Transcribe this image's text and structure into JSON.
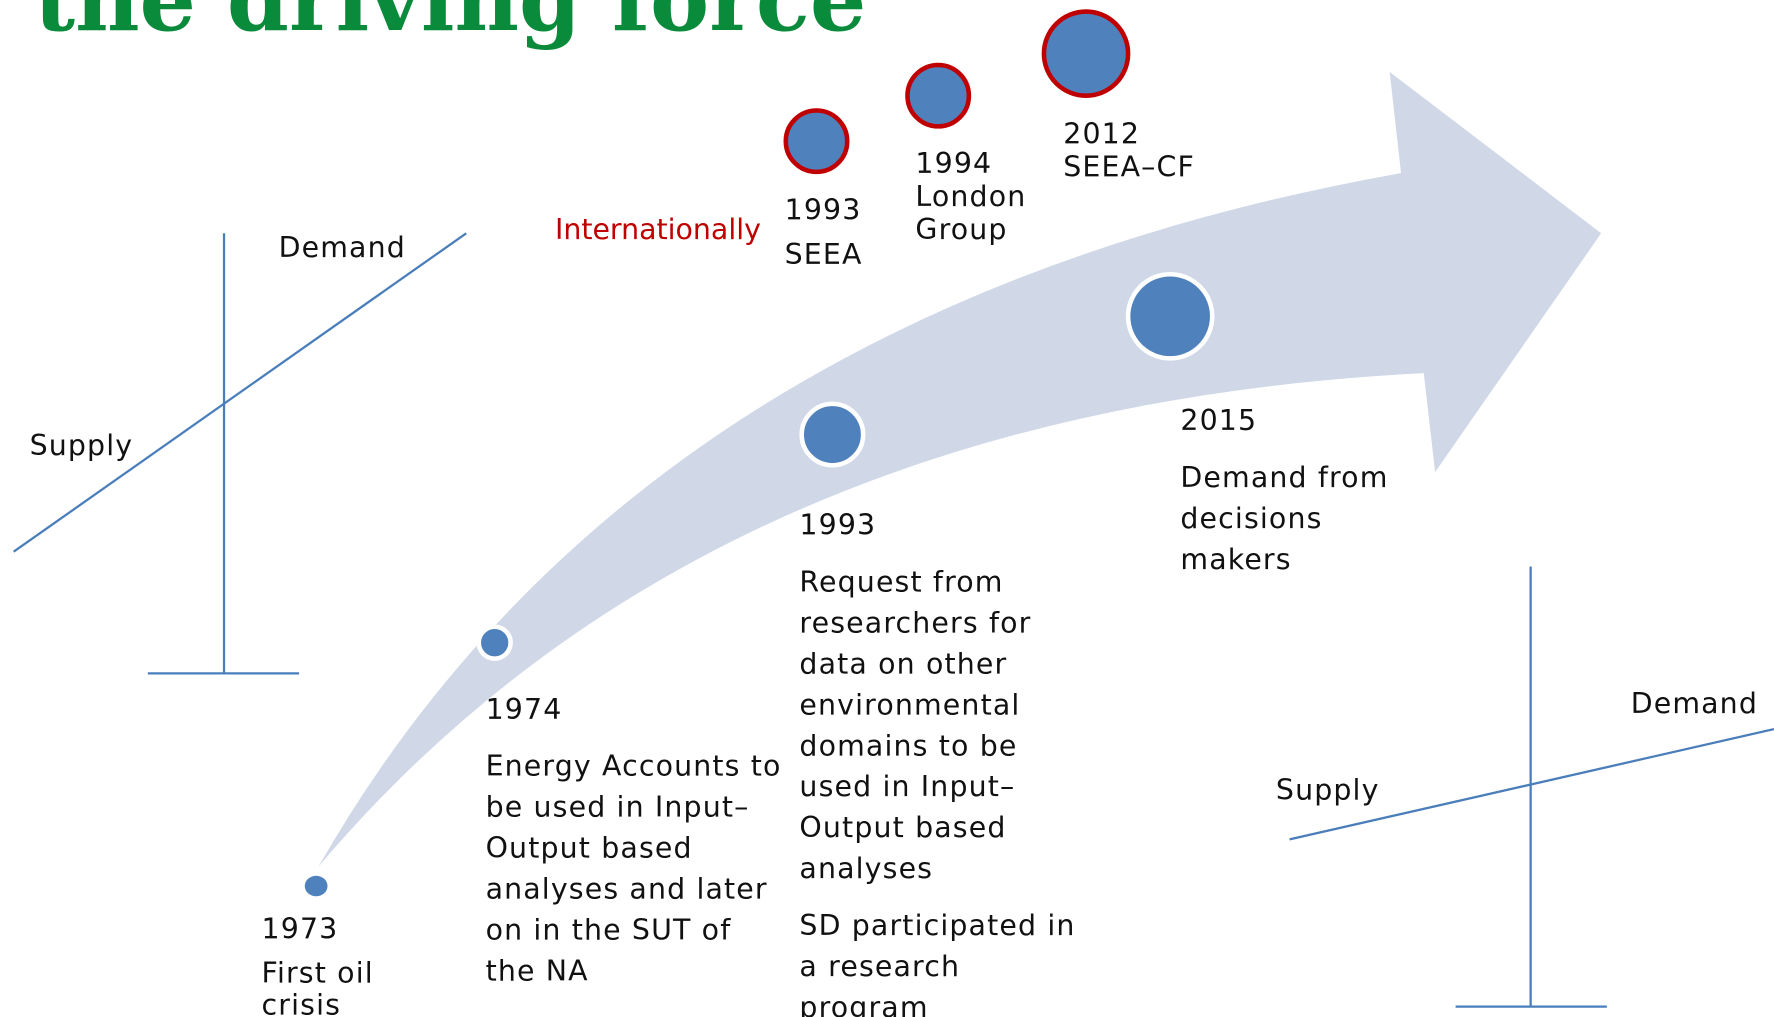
{
  "title": "the driving force",
  "international": {
    "label": "Internationally",
    "milestones": [
      {
        "lines": [
          "1993",
          "SEEA"
        ]
      },
      {
        "lines": [
          "1994",
          "London",
          "Group"
        ]
      },
      {
        "lines": [
          "2012",
          "SEEA–CF"
        ]
      }
    ]
  },
  "timeline": [
    {
      "year": "1973",
      "lines": [
        "First oil",
        "crisis"
      ]
    },
    {
      "year": "1974",
      "lines": [
        "Energy Accounts to",
        "be used in Input–",
        "Output based",
        "analyses and later",
        "on in the SUT of",
        "the NA"
      ]
    },
    {
      "year": "1993",
      "lines": [
        "Request from",
        "researchers for",
        "data on other",
        "environmental",
        "domains to be",
        "used in Input–",
        "Output based",
        "analyses"
      ],
      "note": [
        "SD participated in",
        "a research",
        "program"
      ]
    },
    {
      "year": "2015",
      "lines": [
        "Demand from",
        "decisions",
        "makers"
      ]
    }
  ],
  "left_diagram": {
    "demand": "Demand",
    "supply": "Supply"
  },
  "right_diagram": {
    "demand": "Demand",
    "supply": "Supply"
  }
}
